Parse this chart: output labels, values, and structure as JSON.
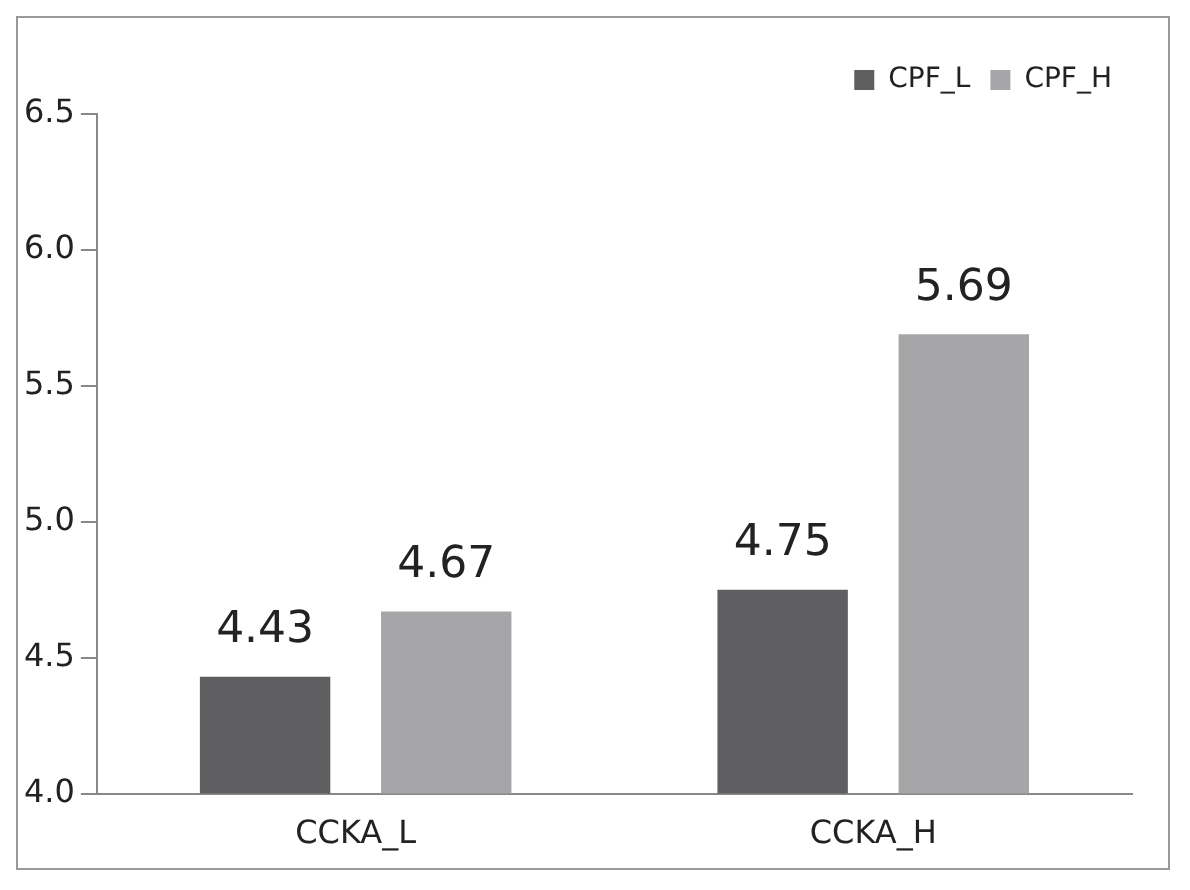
{
  "chart_data": {
    "type": "bar",
    "categories": [
      "CCKA_L",
      "CCKA_H"
    ],
    "series": [
      {
        "name": "CPF_L",
        "color": "#5f5f62",
        "values": [
          4.43,
          4.75
        ]
      },
      {
        "name": "CPF_H",
        "color": "#a6a6a8",
        "values": [
          4.67,
          5.69
        ]
      }
    ],
    "ylim": [
      4.0,
      6.5
    ],
    "yticks": [
      {
        "value": 4.0,
        "label": "4.0"
      },
      {
        "value": 4.5,
        "label": "4.5"
      },
      {
        "value": 5.0,
        "label": "5.0"
      },
      {
        "value": 5.5,
        "label": "5.5"
      },
      {
        "value": 6.0,
        "label": "6.0"
      },
      {
        "value": 6.5,
        "label": "6.5"
      }
    ],
    "grid": false,
    "legend": "top right",
    "data_labels": true
  }
}
